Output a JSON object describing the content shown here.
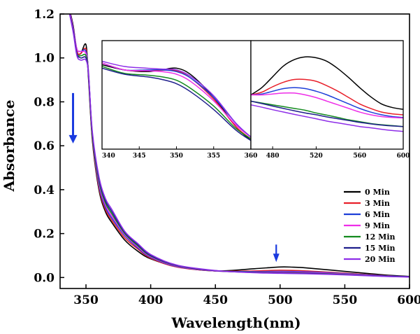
{
  "chart_data": [
    {
      "type": "line",
      "title": "",
      "xlabel": "Wavelength(nm)",
      "ylabel": "Absorbance",
      "xlim": [
        330,
        600
      ],
      "ylim": [
        -0.05,
        1.2
      ],
      "xticks": [
        350,
        400,
        450,
        500,
        550,
        600
      ],
      "yticks": [
        0.0,
        0.2,
        0.4,
        0.6,
        0.8,
        1.0,
        1.2
      ],
      "xtick_labels": [
        "350",
        "400",
        "450",
        "500",
        "550",
        "600"
      ],
      "ytick_labels": [
        "0.0",
        "0.2",
        "0.4",
        "0.6",
        "0.8",
        "1.0",
        "1.2"
      ],
      "grid": false,
      "legend_position": "bottom-right",
      "annotations": [
        {
          "type": "arrow",
          "direction": "down",
          "x": 340,
          "y_from": 0.84,
          "y_to": 0.62,
          "color": "#1a3adf"
        },
        {
          "type": "arrow",
          "direction": "down",
          "x": 497,
          "y_from": 0.15,
          "y_to": 0.08,
          "color": "#1a3adf"
        }
      ],
      "series": [
        {
          "name": "0 Min",
          "color": "#000000",
          "x": [
            330,
            335,
            340,
            343,
            346,
            350,
            352,
            355,
            360,
            365,
            370,
            380,
            390,
            400,
            420,
            450,
            480,
            500,
            510,
            520,
            550,
            580,
            600
          ],
          "y": [
            1.45,
            1.28,
            1.15,
            1.03,
            1.02,
            1.06,
            0.9,
            0.62,
            0.4,
            0.3,
            0.25,
            0.17,
            0.12,
            0.085,
            0.05,
            0.03,
            0.04,
            0.048,
            0.047,
            0.044,
            0.028,
            0.012,
            0.005
          ]
        },
        {
          "name": "3 Min",
          "color": "#e8202a",
          "x": [
            330,
            335,
            340,
            343,
            346,
            350,
            352,
            355,
            360,
            365,
            370,
            380,
            390,
            400,
            420,
            450,
            480,
            500,
            520,
            550,
            580,
            600
          ],
          "y": [
            1.45,
            1.28,
            1.14,
            1.03,
            1.02,
            1.04,
            0.92,
            0.63,
            0.41,
            0.31,
            0.26,
            0.18,
            0.13,
            0.088,
            0.048,
            0.03,
            0.03,
            0.033,
            0.03,
            0.02,
            0.009,
            0.004
          ]
        },
        {
          "name": "6 Min",
          "color": "#1d3fd8",
          "x": [
            330,
            335,
            340,
            343,
            346,
            350,
            352,
            355,
            360,
            365,
            370,
            380,
            390,
            400,
            420,
            450,
            480,
            500,
            520,
            550,
            580,
            600
          ],
          "y": [
            1.45,
            1.28,
            1.14,
            1.04,
            1.03,
            1.03,
            0.93,
            0.64,
            0.42,
            0.32,
            0.27,
            0.19,
            0.135,
            0.092,
            0.05,
            0.03,
            0.027,
            0.028,
            0.026,
            0.018,
            0.008,
            0.004
          ]
        },
        {
          "name": "9 Min",
          "color": "#ee2ee8",
          "x": [
            330,
            335,
            340,
            343,
            346,
            350,
            352,
            355,
            360,
            365,
            370,
            380,
            390,
            400,
            420,
            450,
            480,
            500,
            520,
            550,
            580,
            600
          ],
          "y": [
            1.45,
            1.28,
            1.14,
            1.04,
            1.03,
            1.02,
            0.93,
            0.64,
            0.43,
            0.33,
            0.28,
            0.195,
            0.14,
            0.095,
            0.052,
            0.03,
            0.025,
            0.025,
            0.023,
            0.016,
            0.007,
            0.003
          ]
        },
        {
          "name": "12 Min",
          "color": "#138a1e",
          "x": [
            330,
            335,
            340,
            343,
            346,
            350,
            352,
            355,
            360,
            365,
            370,
            380,
            390,
            400,
            420,
            450,
            480,
            500,
            520,
            550,
            580,
            600
          ],
          "y": [
            1.45,
            1.27,
            1.13,
            1.02,
            1.01,
            1.01,
            0.92,
            0.64,
            0.44,
            0.34,
            0.29,
            0.2,
            0.145,
            0.098,
            0.054,
            0.031,
            0.024,
            0.022,
            0.02,
            0.014,
            0.006,
            0.003
          ]
        },
        {
          "name": "15 Min",
          "color": "#1f1f8c",
          "x": [
            330,
            335,
            340,
            343,
            346,
            350,
            352,
            355,
            360,
            365,
            370,
            380,
            390,
            400,
            420,
            450,
            480,
            500,
            520,
            550,
            580,
            600
          ],
          "y": [
            1.45,
            1.27,
            1.13,
            1.02,
            1.0,
            1.0,
            0.92,
            0.65,
            0.45,
            0.35,
            0.3,
            0.205,
            0.15,
            0.1,
            0.055,
            0.031,
            0.023,
            0.021,
            0.019,
            0.013,
            0.006,
            0.003
          ]
        },
        {
          "name": "20 Min",
          "color": "#8e2ee8",
          "x": [
            330,
            335,
            340,
            343,
            346,
            350,
            352,
            355,
            360,
            365,
            370,
            380,
            390,
            400,
            420,
            450,
            480,
            500,
            520,
            550,
            580,
            600
          ],
          "y": [
            1.45,
            1.27,
            1.12,
            1.01,
            0.99,
            0.99,
            0.92,
            0.66,
            0.46,
            0.36,
            0.31,
            0.21,
            0.155,
            0.105,
            0.057,
            0.032,
            0.022,
            0.019,
            0.017,
            0.012,
            0.005,
            0.002
          ]
        }
      ]
    },
    {
      "type": "line",
      "title": "",
      "xlabel": "",
      "ylabel": "",
      "xlim": [
        340,
        360
      ],
      "xticks": [
        340,
        345,
        350,
        355,
        360
      ],
      "xtick_labels": [
        "340",
        "345",
        "350",
        "355",
        "360"
      ],
      "ylim": [
        0.6,
        1.2
      ],
      "series": [
        {
          "name": "0 Min",
          "color": "#000000",
          "x": [
            340,
            343,
            346,
            348,
            350,
            352,
            355,
            358,
            360
          ],
          "y": [
            1.04,
            1.01,
            1.0,
            1.01,
            1.02,
            0.98,
            0.85,
            0.68,
            0.6
          ]
        },
        {
          "name": "3 Min",
          "color": "#e8202a",
          "x": [
            340,
            343,
            346,
            348,
            350,
            352,
            355,
            358,
            360
          ],
          "y": [
            1.05,
            1.01,
            1.005,
            1.008,
            1.005,
            0.96,
            0.84,
            0.68,
            0.61
          ]
        },
        {
          "name": "6 Min",
          "color": "#1d3fd8",
          "x": [
            340,
            343,
            346,
            348,
            350,
            352,
            355,
            358,
            360
          ],
          "y": [
            1.05,
            1.01,
            1.01,
            1.01,
            1.0,
            0.96,
            0.85,
            0.7,
            0.62
          ]
        },
        {
          "name": "9 Min",
          "color": "#ee2ee8",
          "x": [
            340,
            343,
            346,
            348,
            350,
            352,
            355,
            358,
            360
          ],
          "y": [
            1.05,
            1.01,
            1.005,
            1.0,
            0.985,
            0.94,
            0.83,
            0.69,
            0.62
          ]
        },
        {
          "name": "12 Min",
          "color": "#138a1e",
          "x": [
            340,
            343,
            346,
            348,
            350,
            352,
            355,
            358,
            360
          ],
          "y": [
            1.03,
            0.99,
            0.98,
            0.97,
            0.95,
            0.9,
            0.8,
            0.67,
            0.61
          ]
        },
        {
          "name": "15 Min",
          "color": "#1f1f8c",
          "x": [
            340,
            343,
            346,
            348,
            350,
            352,
            355,
            358,
            360
          ],
          "y": [
            1.02,
            0.985,
            0.97,
            0.955,
            0.93,
            0.88,
            0.78,
            0.66,
            0.6
          ]
        },
        {
          "name": "20 Min",
          "color": "#8e2ee8",
          "x": [
            340,
            343,
            346,
            348,
            350,
            352,
            355,
            358,
            360
          ],
          "y": [
            1.06,
            1.03,
            1.02,
            1.015,
            1.01,
            0.97,
            0.86,
            0.7,
            0.62
          ]
        }
      ]
    },
    {
      "type": "line",
      "title": "",
      "xlabel": "",
      "ylabel": "",
      "xlim": [
        460,
        600
      ],
      "xticks": [
        480,
        520,
        560,
        600
      ],
      "xtick_labels": [
        "480",
        "520",
        "560",
        "600"
      ],
      "ylim": [
        0.0,
        0.06
      ],
      "series": [
        {
          "name": "0 Min",
          "color": "#000000",
          "x": [
            460,
            470,
            480,
            490,
            500,
            510,
            520,
            530,
            540,
            550,
            560,
            570,
            580,
            590,
            600
          ],
          "y": [
            0.03,
            0.034,
            0.04,
            0.046,
            0.0495,
            0.051,
            0.0505,
            0.0485,
            0.0445,
            0.0395,
            0.034,
            0.029,
            0.025,
            0.023,
            0.022
          ]
        },
        {
          "name": "3 Min",
          "color": "#e8202a",
          "x": [
            460,
            470,
            480,
            490,
            500,
            510,
            520,
            530,
            540,
            550,
            560,
            570,
            580,
            590,
            600
          ],
          "y": [
            0.03,
            0.0315,
            0.0345,
            0.037,
            0.0385,
            0.0385,
            0.0375,
            0.035,
            0.032,
            0.0285,
            0.025,
            0.0225,
            0.0205,
            0.0195,
            0.019
          ]
        },
        {
          "name": "6 Min",
          "color": "#1d3fd8",
          "x": [
            460,
            470,
            480,
            490,
            500,
            510,
            520,
            530,
            540,
            550,
            560,
            570,
            580,
            590,
            600
          ],
          "y": [
            0.03,
            0.0305,
            0.032,
            0.0335,
            0.034,
            0.0335,
            0.032,
            0.03,
            0.0275,
            0.025,
            0.0225,
            0.0205,
            0.019,
            0.018,
            0.0175
          ]
        },
        {
          "name": "9 Min",
          "color": "#ee2ee8",
          "x": [
            460,
            470,
            480,
            490,
            500,
            510,
            520,
            530,
            540,
            550,
            560,
            570,
            580,
            590,
            600
          ],
          "y": [
            0.03,
            0.03,
            0.0305,
            0.031,
            0.031,
            0.03,
            0.0285,
            0.0265,
            0.0245,
            0.0225,
            0.0205,
            0.019,
            0.018,
            0.0175,
            0.0172
          ]
        },
        {
          "name": "12 Min",
          "color": "#138a1e",
          "x": [
            460,
            470,
            480,
            490,
            500,
            510,
            520,
            530,
            540,
            550,
            560,
            570,
            580,
            590,
            600
          ],
          "y": [
            0.0265,
            0.0255,
            0.0245,
            0.0235,
            0.0225,
            0.0215,
            0.02,
            0.0188,
            0.0175,
            0.0162,
            0.0152,
            0.0142,
            0.0135,
            0.013,
            0.0125
          ]
        },
        {
          "name": "15 Min",
          "color": "#1f1f8c",
          "x": [
            460,
            470,
            480,
            490,
            500,
            510,
            520,
            530,
            540,
            550,
            560,
            570,
            580,
            590,
            600
          ],
          "y": [
            0.0265,
            0.0252,
            0.0238,
            0.0225,
            0.0212,
            0.02,
            0.019,
            0.0178,
            0.0168,
            0.0158,
            0.0148,
            0.014,
            0.0133,
            0.0128,
            0.0125
          ]
        },
        {
          "name": "20 Min",
          "color": "#8e2ee8",
          "x": [
            460,
            470,
            480,
            490,
            500,
            510,
            520,
            530,
            540,
            550,
            560,
            570,
            580,
            590,
            600
          ],
          "y": [
            0.0245,
            0.0232,
            0.0218,
            0.0205,
            0.0192,
            0.018,
            0.0168,
            0.0155,
            0.0145,
            0.0135,
            0.0125,
            0.0118,
            0.011,
            0.0103,
            0.0098
          ]
        }
      ]
    }
  ]
}
